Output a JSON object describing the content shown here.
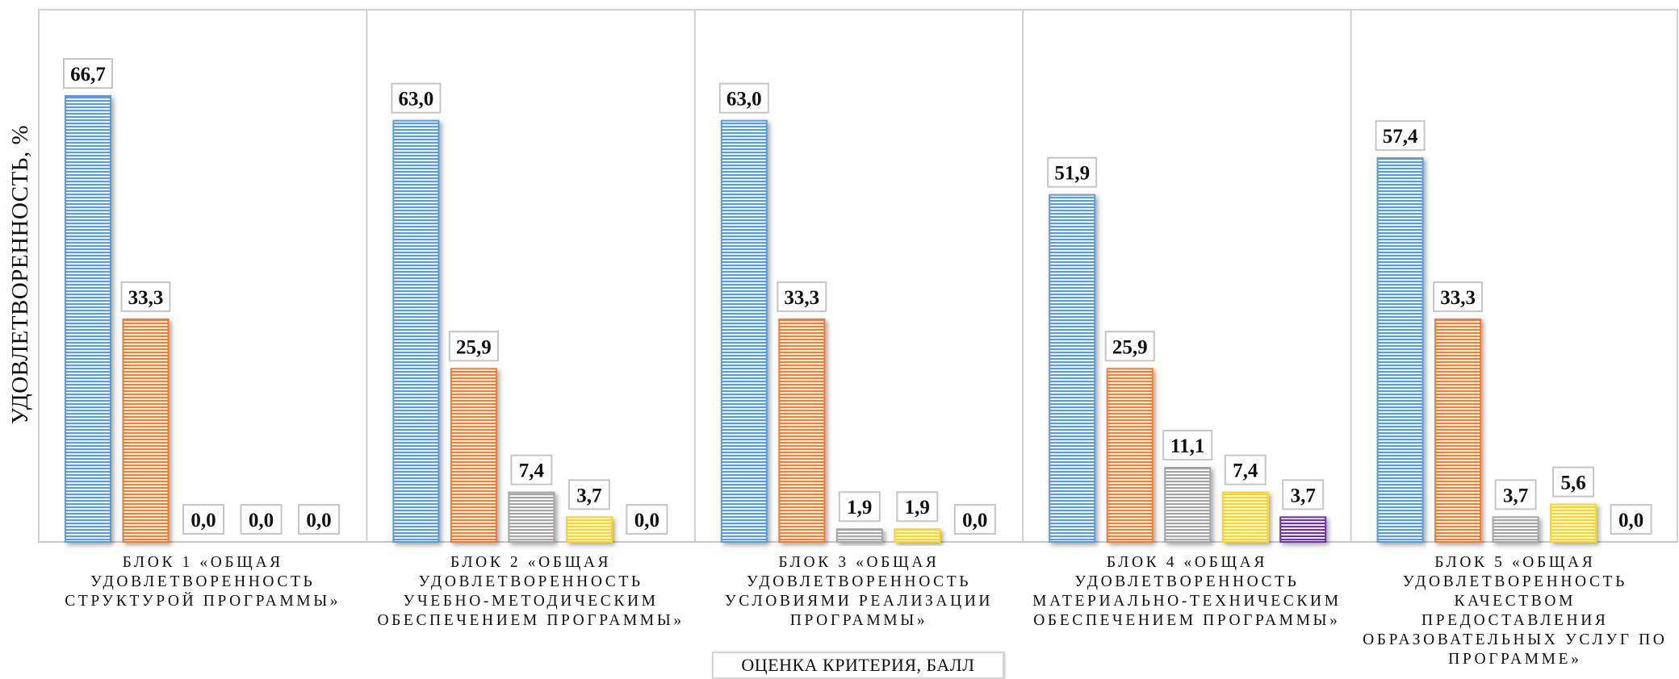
{
  "chart_data": {
    "type": "bar",
    "title": "",
    "ylabel": "УДОВЛЕТВОРЕННОСТЬ, %",
    "xlabel": "ОЦЕНКА КРИТЕРИЯ, БАЛЛ",
    "ylim": [
      0,
      70
    ],
    "grid": false,
    "legend": "none",
    "categories": [
      "БЛОК 1 «ОБЩАЯ УДОВЛЕТВОРЕННОСТЬ СТРУКТУРОЙ ПРОГРАММЫ»",
      "БЛОК 2 «ОБЩАЯ УДОВЛЕТВОРЕННОСТЬ УЧЕБНО-МЕТОДИЧЕСКИМ ОБЕСПЕЧЕНИЕМ ПРОГРАММЫ»",
      "БЛОК 3 «ОБЩАЯ УДОВЛЕТВОРЕННОСТЬ УСЛОВИЯМИ РЕАЛИЗАЦИИ ПРОГРАММЫ»",
      "БЛОК 4 «ОБЩАЯ УДОВЛЕТВОРЕННОСТЬ МАТЕРИАЛЬНО-ТЕХНИЧЕСКИМ ОБЕСПЕЧЕНИЕМ ПРОГРАММЫ»",
      "БЛОК 5 «ОБЩАЯ УДОВЛЕТВОРЕННОСТЬ КАЧЕСТВОМ ПРЕДОСТАВЛЕНИЯ ОБРАЗОВАТЕЛЬНЫХ УСЛУГ ПО ПРОГРАММЕ»"
    ],
    "category_lines": [
      [
        "БЛОК 1 «ОБЩАЯ",
        "УДОВЛЕТВОРЕННОСТЬ",
        "СТРУКТУРОЙ ПРОГРАММЫ»"
      ],
      [
        "БЛОК 2 «ОБЩАЯ",
        "УДОВЛЕТВОРЕННОСТЬ",
        "УЧЕБНО-МЕТОДИЧЕСКИМ",
        "ОБЕСПЕЧЕНИЕМ ПРОГРАММЫ»"
      ],
      [
        "БЛОК 3 «ОБЩАЯ",
        "УДОВЛЕТВОРЕННОСТЬ",
        "УСЛОВИЯМИ РЕАЛИЗАЦИИ",
        "ПРОГРАММЫ»"
      ],
      [
        "БЛОК 4 «ОБЩАЯ",
        "УДОВЛЕТВОРЕННОСТЬ",
        "МАТЕРИАЛЬНО-ТЕХНИЧЕСКИМ",
        "ОБЕСПЕЧЕНИЕМ ПРОГРАММЫ»"
      ],
      [
        "БЛОК 5 «ОБЩАЯ",
        "УДОВЛЕТВОРЕННОСТЬ",
        "КАЧЕСТВОМ",
        "ПРЕДОСТАВЛЕНИЯ",
        "ОБРАЗОВАТЕЛЬНЫХ УСЛУГ ПО",
        "ПРОГРАММЕ»"
      ]
    ],
    "series": [
      {
        "values": [
          66.7,
          63.0,
          63.0,
          51.9,
          57.4
        ],
        "labels": [
          "66,7",
          "63,0",
          "63,0",
          "51,9",
          "57,4"
        ],
        "color": "#5b9bd5"
      },
      {
        "values": [
          33.3,
          25.9,
          33.3,
          25.9,
          33.3
        ],
        "labels": [
          "33,3",
          "25,9",
          "33,3",
          "25,9",
          "33,3"
        ],
        "color": "#ed7d31"
      },
      {
        "values": [
          0.0,
          7.4,
          1.9,
          11.1,
          3.7
        ],
        "labels": [
          "0,0",
          "7,4",
          "1,9",
          "11,1",
          "3,7"
        ],
        "color": "#a5a5a5"
      },
      {
        "values": [
          0.0,
          3.7,
          1.9,
          7.4,
          5.6
        ],
        "labels": [
          "0,0",
          "3,7",
          "1,9",
          "7,4",
          "5,6"
        ],
        "color": "#ffd320"
      },
      {
        "values": [
          0.0,
          0.0,
          0.0,
          3.7,
          0.0
        ],
        "labels": [
          "0,0",
          "0,0",
          "0,0",
          "3,7",
          "0,0"
        ],
        "color": "#7030a0"
      }
    ]
  }
}
